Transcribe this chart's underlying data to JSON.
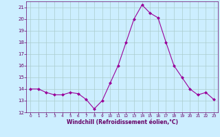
{
  "x": [
    0,
    1,
    2,
    3,
    4,
    5,
    6,
    7,
    8,
    9,
    10,
    11,
    12,
    13,
    14,
    15,
    16,
    17,
    18,
    19,
    20,
    21,
    22,
    23
  ],
  "y": [
    14,
    14,
    13.7,
    13.5,
    13.5,
    13.7,
    13.6,
    13.1,
    12.3,
    13.0,
    14.5,
    16.0,
    18.0,
    20.0,
    21.2,
    20.5,
    20.1,
    18.0,
    16.0,
    15.0,
    14.0,
    13.5,
    13.7,
    13.1
  ],
  "line_color": "#990099",
  "marker_color": "#990099",
  "bg_color": "#cceeff",
  "grid_color": "#aacccc",
  "xlabel": "Windchill (Refroidissement éolien,°C)",
  "xlabel_color": "#660066",
  "tick_color": "#660066",
  "ylim": [
    12,
    21.5
  ],
  "xlim": [
    -0.5,
    23.5
  ],
  "yticks": [
    12,
    13,
    14,
    15,
    16,
    17,
    18,
    19,
    20,
    21
  ],
  "xticks": [
    0,
    1,
    2,
    3,
    4,
    5,
    6,
    7,
    8,
    9,
    10,
    11,
    12,
    13,
    14,
    15,
    16,
    17,
    18,
    19,
    20,
    21,
    22,
    23
  ]
}
